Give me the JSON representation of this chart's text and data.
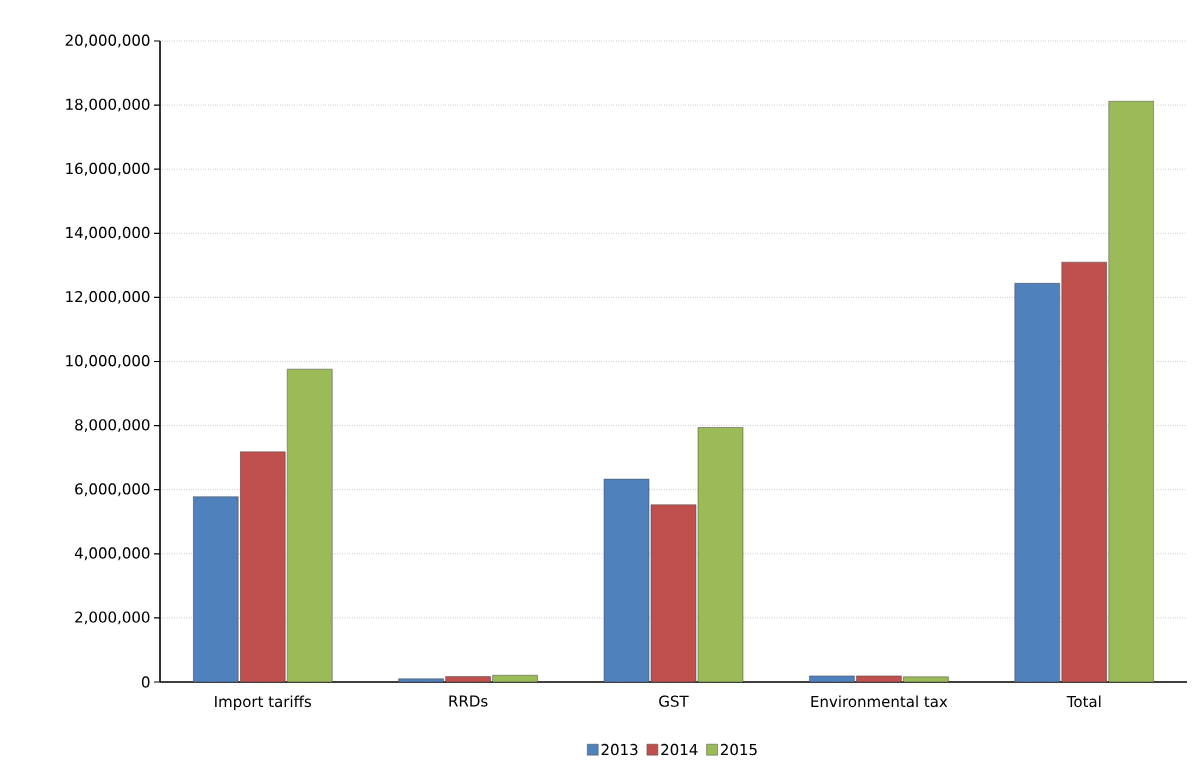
{
  "chart_data": {
    "type": "bar",
    "categories": [
      "Import tariffs",
      "RRDs",
      "GST",
      "Environmental tax",
      "Total"
    ],
    "series": [
      {
        "name": "2013",
        "color": "#4f81bd",
        "values": [
          5780000,
          100000,
          6330000,
          190000,
          12440000
        ]
      },
      {
        "name": "2014",
        "color": "#c0504d",
        "values": [
          7180000,
          170000,
          5530000,
          190000,
          13100000
        ]
      },
      {
        "name": "2015",
        "color": "#9bbb59",
        "values": [
          9760000,
          210000,
          7940000,
          160000,
          18120000
        ]
      }
    ],
    "ylim": [
      0,
      20000000
    ],
    "yticks": [
      {
        "value": 0,
        "label": "0"
      },
      {
        "value": 2000000,
        "label": "2,000,000"
      },
      {
        "value": 4000000,
        "label": "4,000,000"
      },
      {
        "value": 6000000,
        "label": "6,000,000"
      },
      {
        "value": 8000000,
        "label": "8,000,000"
      },
      {
        "value": 10000000,
        "label": "10,000,000"
      },
      {
        "value": 12000000,
        "label": "12,000,000"
      },
      {
        "value": 14000000,
        "label": "14,000,000"
      },
      {
        "value": 16000000,
        "label": "16,000,000"
      },
      {
        "value": 18000000,
        "label": "18,000,000"
      },
      {
        "value": 20000000,
        "label": "20,000,000"
      }
    ],
    "grid": "y",
    "legend": "bottom"
  }
}
